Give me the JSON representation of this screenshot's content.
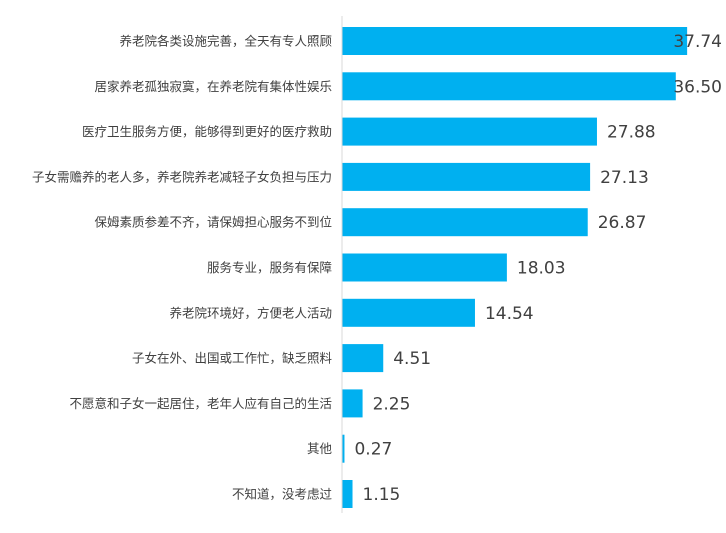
{
  "chart_data": {
    "type": "bar",
    "orientation": "horizontal",
    "categories": [
      "养老院各类设施完善，全天有专人照顾",
      "居家养老孤独寂寞，在养老院有集体性娱乐",
      "医疗卫生服务方便，能够得到更好的医疗救助",
      "子女需赡养的老人多，养老院养老减轻子女负担与压力",
      "保姆素质参差不齐，请保姆担心服务不到位",
      "服务专业，服务有保障",
      "养老院环境好，方便老人活动",
      "子女在外、出国或工作忙，缺乏照料",
      "不愿意和子女一起居住，老年人应有自己的生活",
      "其他",
      "不知道，没考虑过"
    ],
    "values": [
      37.74,
      36.5,
      27.88,
      27.13,
      26.87,
      18.03,
      14.54,
      4.51,
      2.25,
      0.27,
      1.15
    ],
    "value_labels": [
      "37.74",
      "36.50",
      "27.88",
      "27.13",
      "26.87",
      "18.03",
      "14.54",
      "4.51",
      "2.25",
      "0.27",
      "1.15"
    ],
    "bar_color": "#00B0F0",
    "axis_color": "#D9D9D9",
    "text_color": "#404040",
    "xlim": [
      0,
      38
    ]
  }
}
